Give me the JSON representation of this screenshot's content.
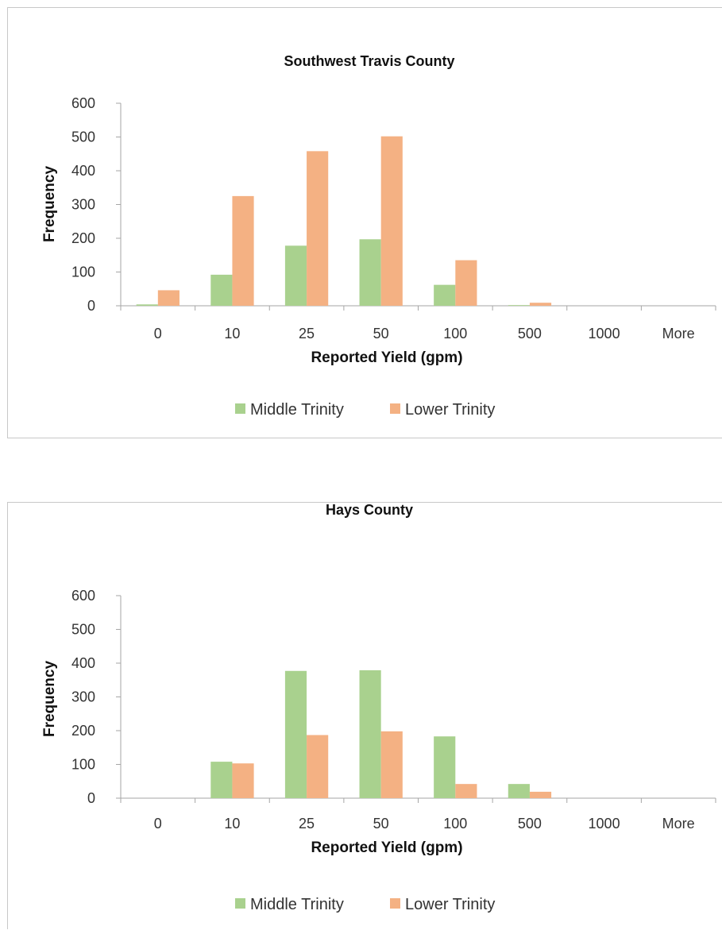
{
  "colors": {
    "middle_trinity": "#a9d18e",
    "lower_trinity": "#f4b183",
    "axis": "#a6a6a6"
  },
  "chart_data": [
    {
      "type": "bar",
      "title": "Southwest Travis County",
      "xlabel": "Reported Yield (gpm)",
      "ylabel": "Frequency",
      "ylim": [
        0,
        600
      ],
      "yticks": [
        "0",
        "100",
        "200",
        "300",
        "400",
        "500",
        "600"
      ],
      "categories": [
        "0",
        "10",
        "25",
        "50",
        "100",
        "500",
        "1000",
        "More"
      ],
      "series": [
        {
          "name": "Middle Trinity",
          "values": [
            4,
            92,
            178,
            197,
            62,
            2,
            0,
            0
          ]
        },
        {
          "name": "Lower Trinity",
          "values": [
            46,
            325,
            458,
            502,
            135,
            9,
            0,
            0
          ]
        }
      ],
      "legend": "bottom",
      "grid": false
    },
    {
      "type": "bar",
      "title": "Hays County",
      "xlabel": "Reported Yield (gpm)",
      "ylabel": "Frequency",
      "ylim": [
        0,
        600
      ],
      "yticks": [
        "0",
        "100",
        "200",
        "300",
        "400",
        "500",
        "600"
      ],
      "categories": [
        "0",
        "10",
        "25",
        "50",
        "100",
        "500",
        "1000",
        "More"
      ],
      "series": [
        {
          "name": "Middle Trinity",
          "values": [
            0,
            108,
            377,
            379,
            183,
            42,
            0,
            0
          ]
        },
        {
          "name": "Lower Trinity",
          "values": [
            0,
            103,
            187,
            198,
            42,
            19,
            0,
            0
          ]
        }
      ],
      "legend": "bottom",
      "grid": false
    }
  ]
}
